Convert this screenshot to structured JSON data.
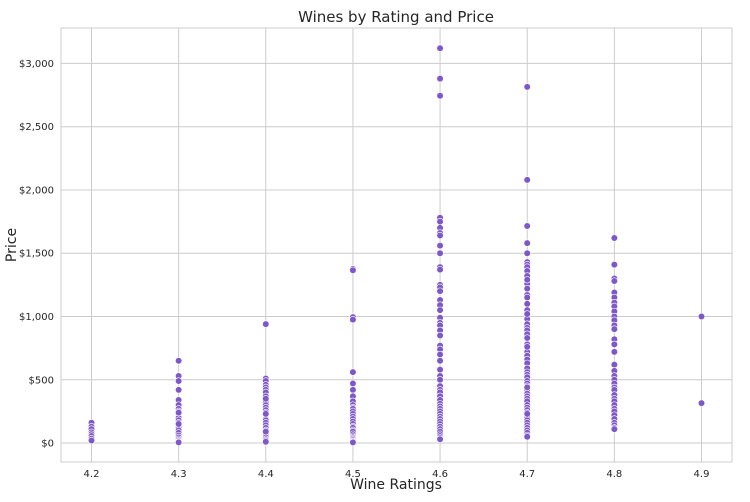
{
  "chart_data": {
    "type": "scatter",
    "title": "Wines by Rating and Price",
    "xlabel": "Wine Ratings",
    "ylabel": "Price",
    "xlim": [
      4.165,
      4.935
    ],
    "ylim": [
      -150,
      3280
    ],
    "x_ticks": [
      4.2,
      4.3,
      4.4,
      4.5,
      4.6,
      4.7,
      4.8,
      4.9
    ],
    "x_tick_labels": [
      "4.2",
      "4.3",
      "4.4",
      "4.5",
      "4.6",
      "4.7",
      "4.8",
      "4.9"
    ],
    "y_ticks": [
      0,
      500,
      1000,
      1500,
      2000,
      2500,
      3000
    ],
    "y_tick_labels": [
      "$0",
      "$500",
      "$1,000",
      "$1,500",
      "$2,000",
      "$2,500",
      "$3,000"
    ],
    "grid": true,
    "marker_color": "#7e57c8",
    "marker_edge_color": "#ffffff",
    "plot_background": "#ffffff",
    "grid_color": "#cccccc",
    "series": [
      {
        "x": [
          4.2,
          4.2,
          4.2,
          4.2,
          4.2,
          4.2,
          4.2,
          4.2,
          4.3,
          4.3,
          4.3,
          4.3,
          4.3,
          4.3,
          4.3,
          4.3,
          4.3,
          4.3,
          4.3,
          4.3,
          4.3,
          4.3,
          4.3,
          4.3,
          4.3,
          4.3,
          4.3,
          4.3,
          4.3,
          4.3,
          4.3,
          4.3,
          4.4,
          4.4,
          4.4,
          4.4,
          4.4,
          4.4,
          4.4,
          4.4,
          4.4,
          4.4,
          4.4,
          4.4,
          4.4,
          4.4,
          4.4,
          4.4,
          4.4,
          4.4,
          4.4,
          4.4,
          4.4,
          4.4,
          4.4,
          4.4,
          4.4,
          4.4,
          4.4,
          4.4,
          4.4,
          4.4,
          4.4,
          4.5,
          4.5,
          4.5,
          4.5,
          4.5,
          4.5,
          4.5,
          4.5,
          4.5,
          4.5,
          4.5,
          4.5,
          4.5,
          4.5,
          4.5,
          4.5,
          4.5,
          4.5,
          4.5,
          4.5,
          4.5,
          4.5,
          4.5,
          4.5,
          4.5,
          4.5,
          4.5,
          4.5,
          4.5,
          4.5,
          4.6,
          4.6,
          4.6,
          4.6,
          4.6,
          4.6,
          4.6,
          4.6,
          4.6,
          4.6,
          4.6,
          4.6,
          4.6,
          4.6,
          4.6,
          4.6,
          4.6,
          4.6,
          4.6,
          4.6,
          4.6,
          4.6,
          4.6,
          4.6,
          4.6,
          4.6,
          4.6,
          4.6,
          4.6,
          4.6,
          4.6,
          4.6,
          4.6,
          4.6,
          4.6,
          4.6,
          4.6,
          4.6,
          4.6,
          4.6,
          4.6,
          4.6,
          4.6,
          4.6,
          4.6,
          4.6,
          4.6,
          4.6,
          4.6,
          4.6,
          4.6,
          4.7,
          4.7,
          4.7,
          4.7,
          4.7,
          4.7,
          4.7,
          4.7,
          4.7,
          4.7,
          4.7,
          4.7,
          4.7,
          4.7,
          4.7,
          4.7,
          4.7,
          4.7,
          4.7,
          4.7,
          4.7,
          4.7,
          4.7,
          4.7,
          4.7,
          4.7,
          4.7,
          4.7,
          4.7,
          4.7,
          4.7,
          4.7,
          4.7,
          4.7,
          4.7,
          4.7,
          4.7,
          4.7,
          4.7,
          4.7,
          4.7,
          4.7,
          4.7,
          4.7,
          4.7,
          4.7,
          4.7,
          4.7,
          4.7,
          4.7,
          4.7,
          4.7,
          4.7,
          4.7,
          4.7,
          4.7,
          4.7,
          4.7,
          4.7,
          4.8,
          4.8,
          4.8,
          4.8,
          4.8,
          4.8,
          4.8,
          4.8,
          4.8,
          4.8,
          4.8,
          4.8,
          4.8,
          4.8,
          4.8,
          4.8,
          4.8,
          4.8,
          4.8,
          4.8,
          4.8,
          4.8,
          4.8,
          4.8,
          4.8,
          4.8,
          4.8,
          4.8,
          4.8,
          4.8,
          4.8,
          4.8,
          4.8,
          4.8,
          4.8,
          4.9,
          4.9
        ],
        "y": [
          160,
          130,
          110,
          85,
          70,
          55,
          35,
          20,
          650,
          530,
          490,
          420,
          340,
          300,
          270,
          250,
          230,
          200,
          180,
          160,
          140,
          120,
          100,
          80,
          60,
          45,
          30,
          20,
          10,
          5,
          150,
          240,
          940,
          510,
          490,
          460,
          440,
          420,
          400,
          370,
          340,
          320,
          300,
          280,
          260,
          240,
          220,
          200,
          190,
          180,
          160,
          140,
          120,
          100,
          80,
          60,
          45,
          30,
          20,
          10,
          90,
          230,
          350,
          1375,
          1365,
          995,
          975,
          560,
          470,
          420,
          370,
          330,
          300,
          280,
          270,
          250,
          230,
          210,
          190,
          170,
          150,
          130,
          120,
          100,
          90,
          70,
          55,
          45,
          35,
          25,
          15,
          10,
          5,
          3120,
          2880,
          2745,
          1780,
          1750,
          1700,
          1660,
          1640,
          1560,
          1500,
          1390,
          1370,
          1250,
          1230,
          1200,
          1130,
          1090,
          1050,
          990,
          950,
          930,
          890,
          850,
          770,
          740,
          700,
          650,
          580,
          530,
          500,
          450,
          420,
          400,
          370,
          340,
          310,
          290,
          270,
          250,
          230,
          210,
          190,
          170,
          150,
          130,
          110,
          90,
          70,
          55,
          40,
          30,
          2815,
          2080,
          1715,
          1580,
          1500,
          1430,
          1410,
          1390,
          1360,
          1320,
          1260,
          1220,
          1170,
          1150,
          1100,
          1050,
          1010,
          980,
          940,
          910,
          890,
          860,
          830,
          780,
          720,
          690,
          660,
          630,
          590,
          560,
          540,
          520,
          490,
          470,
          450,
          420,
          390,
          370,
          350,
          330,
          300,
          280,
          260,
          240,
          220,
          200,
          180,
          160,
          140,
          120,
          100,
          80,
          60,
          50,
          1290,
          1020,
          760,
          440,
          230,
          1620,
          1410,
          1300,
          1280,
          1190,
          1150,
          1110,
          1080,
          1040,
          1000,
          970,
          930,
          900,
          820,
          780,
          720,
          620,
          570,
          530,
          500,
          470,
          440,
          420,
          380,
          350,
          330,
          300,
          270,
          250,
          220,
          190,
          160,
          140,
          120,
          110,
          1000,
          315
        ]
      }
    ]
  }
}
